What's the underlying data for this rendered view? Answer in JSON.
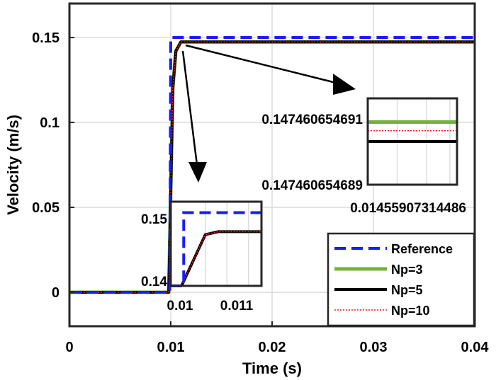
{
  "chart_data": {
    "type": "line",
    "xlabel": "Time (s)",
    "ylabel": "Velocity (m/s)",
    "xlim": [
      0,
      0.04
    ],
    "ylim": [
      -0.02,
      0.17
    ],
    "x_ticks": [
      0,
      0.01,
      0.02,
      0.03,
      0.04
    ],
    "x_tick_labels": [
      "0",
      "0.01",
      "0.02",
      "0.03",
      "0.04"
    ],
    "y_ticks": [
      0,
      0.05,
      0.1,
      0.15
    ],
    "y_tick_labels": [
      "0",
      "0.05",
      "0.1",
      "0.15"
    ],
    "grid": true,
    "legend_position": "bottom-right",
    "series": [
      {
        "name": "Reference",
        "color": "#1a1aff",
        "style": "dashed",
        "x": [
          0,
          0.0099,
          0.01,
          0.04
        ],
        "y": [
          0,
          0,
          0.15,
          0.15
        ]
      },
      {
        "name": "Np=3",
        "color": "#77b13c",
        "style": "solid",
        "x": [
          0,
          0.0098,
          0.0102,
          0.0105,
          0.011,
          0.04
        ],
        "y": [
          0,
          0,
          0.12,
          0.142,
          0.1474,
          0.1474
        ]
      },
      {
        "name": "Np=5",
        "color": "#000000",
        "style": "solid",
        "x": [
          0,
          0.0098,
          0.0102,
          0.0105,
          0.011,
          0.04
        ],
        "y": [
          0,
          0,
          0.12,
          0.142,
          0.1474,
          0.1474
        ]
      },
      {
        "name": "Np=10",
        "color": "#ff1a1a",
        "style": "dotted",
        "x": [
          0,
          0.0098,
          0.0102,
          0.0105,
          0.011,
          0.04
        ],
        "y": [
          0,
          0,
          0.12,
          0.142,
          0.1474,
          0.1474
        ]
      }
    ],
    "insets": [
      {
        "label": "zoom-lower",
        "xlim": [
          0.0097,
          0.0118
        ],
        "ylim": [
          0.14,
          0.1515
        ],
        "x_tick_labels": [
          "0.01",
          "0.011"
        ],
        "x_ticks": [
          0.01,
          0.011
        ],
        "y_tick_labels": [
          "0.15",
          "0.14"
        ],
        "y_ticks": [
          0.15,
          0.14
        ],
        "reference": {
          "x": [
            0.0097,
            0.01,
            0.01,
            0.0118
          ],
          "y": [
            0.14,
            0.14,
            0.15,
            0.15
          ]
        },
        "response": {
          "x": [
            0.00995,
            0.0105,
            0.0108,
            0.0118
          ],
          "y": [
            0.14,
            0.147,
            0.1474,
            0.1474
          ]
        }
      },
      {
        "label": "zoom-upper",
        "y_top_label": "0.147460654691",
        "y_bottom_label": "0.147460654689",
        "x_label": "0.01455907314486",
        "levels": [
          {
            "series": "Np=3",
            "value": 0.14746065469045
          },
          {
            "series": "Np=10",
            "value": 0.14746065469025
          },
          {
            "series": "Np=5",
            "value": 0.14746065469
          }
        ],
        "ylim": [
          0.147460654689,
          0.147460654691
        ]
      }
    ]
  }
}
